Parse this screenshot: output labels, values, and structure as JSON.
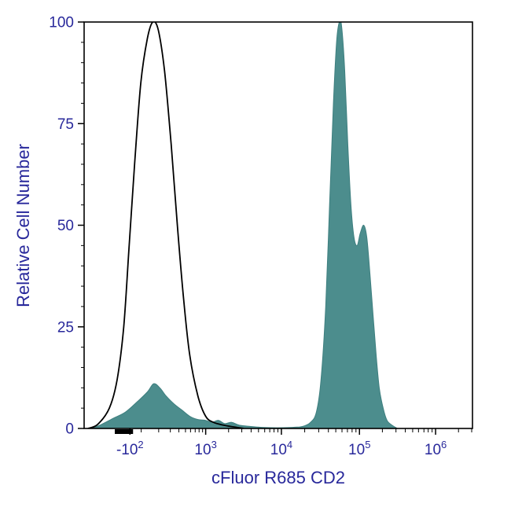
{
  "figure": {
    "y_axis_label": "Relative Cell Number",
    "x_axis_label": "cFluor R685 CD2"
  },
  "chart_data": {
    "type": "area",
    "subtype": "flow-cytometry-histogram-overlay",
    "title": "",
    "xlabel": "cFluor R685 CD2",
    "ylabel": "Relative Cell Number",
    "x_scale": "biexponential",
    "ylim": [
      0,
      100
    ],
    "grid": "off",
    "legend": "none",
    "colors": {
      "axis_text": "#28289B",
      "axis_line": "#000000",
      "fill": "#4C8D8D",
      "fill_stroke": "#3E7F7F",
      "open_stroke": "#000000"
    },
    "y_major_ticks": [
      0,
      25,
      50,
      75,
      100
    ],
    "y_minor_step": 5,
    "x_major_ticks": [
      {
        "u": 0.118,
        "base": "-10",
        "exp": "2",
        "value": -100
      },
      {
        "u": 0.313,
        "base": "10",
        "exp": "3",
        "value": 1000
      },
      {
        "u": 0.508,
        "base": "10",
        "exp": "4",
        "value": 10000
      },
      {
        "u": 0.709,
        "base": "10",
        "exp": "5",
        "value": 100000
      },
      {
        "u": 0.905,
        "base": "10",
        "exp": "6",
        "value": 1000000
      }
    ],
    "x_minor_ticks_u": [
      0.147,
      0.192,
      0.222,
      0.244,
      0.261,
      0.274,
      0.286,
      0.296,
      0.305,
      0.372,
      0.406,
      0.43,
      0.449,
      0.465,
      0.478,
      0.489,
      0.499,
      0.568,
      0.604,
      0.629,
      0.648,
      0.664,
      0.678,
      0.69,
      0.7,
      0.768,
      0.803,
      0.827,
      0.846,
      0.861,
      0.875,
      0.886,
      0.896,
      0.964,
      0.998
    ],
    "x_bold_segment_u": [
      0.079,
      0.126
    ],
    "series": [
      {
        "name": "open-black-histogram-control",
        "style": "open",
        "peak": {
          "u": 0.177,
          "y": 100
        },
        "points": [
          [
            0.01,
            0
          ],
          [
            0.035,
            1
          ],
          [
            0.065,
            5
          ],
          [
            0.085,
            12
          ],
          [
            0.102,
            25
          ],
          [
            0.116,
            45
          ],
          [
            0.13,
            65
          ],
          [
            0.146,
            85
          ],
          [
            0.163,
            96
          ],
          [
            0.177,
            100
          ],
          [
            0.191,
            98
          ],
          [
            0.207,
            88
          ],
          [
            0.224,
            70
          ],
          [
            0.24,
            50
          ],
          [
            0.256,
            32
          ],
          [
            0.272,
            18
          ],
          [
            0.293,
            8
          ],
          [
            0.313,
            3
          ],
          [
            0.333,
            1.5
          ],
          [
            0.36,
            0.8
          ],
          [
            0.39,
            0.3
          ],
          [
            0.411,
            0
          ]
        ]
      },
      {
        "name": "filled-teal-histogram-cd2-stained",
        "style": "filled",
        "peaks": [
          {
            "u": 0.179,
            "y": 11
          },
          {
            "u": 0.657,
            "y": 100
          },
          {
            "u": 0.72,
            "y": 50
          }
        ],
        "points": [
          [
            0.02,
            0
          ],
          [
            0.045,
            1
          ],
          [
            0.075,
            2.5
          ],
          [
            0.106,
            4
          ],
          [
            0.136,
            6.5
          ],
          [
            0.163,
            9
          ],
          [
            0.179,
            11
          ],
          [
            0.195,
            10
          ],
          [
            0.211,
            8
          ],
          [
            0.232,
            6
          ],
          [
            0.252,
            4.5
          ],
          [
            0.272,
            3
          ],
          [
            0.293,
            2.2
          ],
          [
            0.313,
            2.0
          ],
          [
            0.329,
            1.5
          ],
          [
            0.346,
            2.0
          ],
          [
            0.362,
            1.2
          ],
          [
            0.38,
            1.5
          ],
          [
            0.4,
            0.8
          ],
          [
            0.427,
            0.5
          ],
          [
            0.451,
            0.3
          ],
          [
            0.482,
            0.2
          ],
          [
            0.512,
            0.2
          ],
          [
            0.543,
            0.3
          ],
          [
            0.563,
            0.5
          ],
          [
            0.583,
            1.5
          ],
          [
            0.598,
            4
          ],
          [
            0.61,
            12
          ],
          [
            0.622,
            30
          ],
          [
            0.632,
            55
          ],
          [
            0.642,
            80
          ],
          [
            0.65,
            95
          ],
          [
            0.657,
            100
          ],
          [
            0.663,
            99
          ],
          [
            0.671,
            88
          ],
          [
            0.679,
            70
          ],
          [
            0.687,
            55
          ],
          [
            0.695,
            47
          ],
          [
            0.703,
            45
          ],
          [
            0.711,
            48
          ],
          [
            0.72,
            50
          ],
          [
            0.728,
            47
          ],
          [
            0.736,
            38
          ],
          [
            0.744,
            28
          ],
          [
            0.752,
            18
          ],
          [
            0.76,
            10
          ],
          [
            0.77,
            5
          ],
          [
            0.78,
            2
          ],
          [
            0.793,
            0.8
          ],
          [
            0.807,
            0
          ]
        ]
      }
    ]
  }
}
